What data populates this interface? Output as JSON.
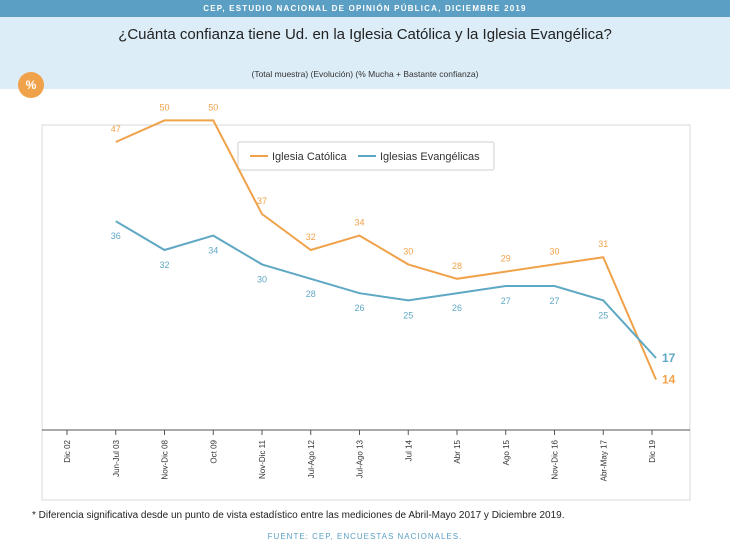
{
  "header": {
    "band_text": "CEP, ESTUDIO NACIONAL DE OPINIÓN PÚBLICA, DICIEMBRE 2019"
  },
  "badge": {
    "text": "%"
  },
  "footnote": "* Diferencia significativa desde un punto de vista estadístico entre las mediciones de Abril-Mayo 2017 y Diciembre 2019.",
  "source": "FUENTE: CEP, ENCUESTAS NACIONALES.",
  "colors": {
    "catolica": "#f0a24a",
    "evangelicas": "#5ea8c4",
    "band": "#5b9fc4"
  },
  "chart_data": {
    "type": "line",
    "title": "¿Cuánta confianza tiene Ud. en la Iglesia Católica y la Iglesia Evangélica?",
    "subtitle": "(Total muestra) (Evolución) (% Mucha + Bastante confianza)",
    "categories": [
      "Dic 02",
      "Jun-Jul 03",
      "Nov-Dic 08",
      "Oct 09",
      "Nov-Dic 11",
      "Jul-Ago 12",
      "Jul-Ago 13",
      "Jul 14",
      "Abr 15",
      "Ago 15",
      "Nov-Dic 16",
      "Abr-May 17",
      "Dic 19"
    ],
    "series": [
      {
        "name": "Iglesia Católica",
        "values": [
          null,
          47,
          50,
          50,
          37,
          32,
          34,
          30,
          28,
          29,
          30,
          31,
          14
        ]
      },
      {
        "name": "Iglesias Evangélicas",
        "values": [
          null,
          36,
          32,
          34,
          30,
          28,
          26,
          25,
          26,
          27,
          27,
          25,
          17
        ]
      }
    ],
    "legend": "top-center",
    "grid": false
  }
}
